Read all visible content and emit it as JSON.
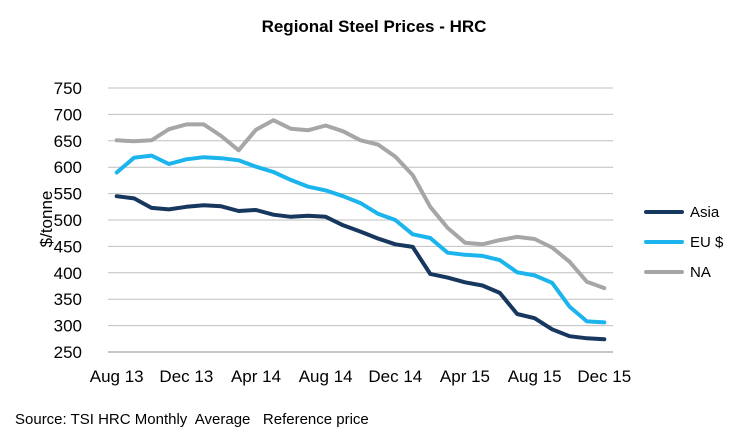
{
  "chart_data": {
    "type": "line",
    "title": "Regional Steel Prices - HRC",
    "xlabel": "",
    "ylabel": "$/tonne",
    "ylim": [
      250,
      750
    ],
    "yticks": [
      250,
      300,
      350,
      400,
      450,
      500,
      550,
      600,
      650,
      700,
      750
    ],
    "grid": true,
    "legend_position": "right",
    "x_tick_labels": [
      "Aug 13",
      "Dec 13",
      "Apr 14",
      "Aug 14",
      "Dec 14",
      "Apr 15",
      "Aug 15",
      "Dec 15"
    ],
    "x": [
      "Aug 13",
      "Sep 13",
      "Oct 13",
      "Nov 13",
      "Dec 13",
      "Jan 14",
      "Feb 14",
      "Mar 14",
      "Apr 14",
      "May 14",
      "Jun 14",
      "Jul 14",
      "Aug 14",
      "Sep 14",
      "Oct 14",
      "Nov 14",
      "Dec 14",
      "Jan 15",
      "Feb 15",
      "Mar 15",
      "Apr 15",
      "May 15",
      "Jun 15",
      "Jul 15",
      "Aug 15",
      "Sep 15",
      "Oct 15",
      "Nov 15",
      "Dec 15"
    ],
    "series": [
      {
        "name": "Asia",
        "color": "#17375e",
        "values": [
          545,
          541,
          523,
          520,
          525,
          528,
          526,
          517,
          519,
          510,
          506,
          508,
          506,
          490,
          478,
          465,
          454,
          449,
          398,
          391,
          382,
          376,
          362,
          322,
          314,
          293,
          280,
          276,
          274
        ]
      },
      {
        "name": "EU $",
        "color": "#1cb4ec",
        "values": [
          590,
          618,
          622,
          606,
          615,
          619,
          617,
          613,
          601,
          591,
          576,
          563,
          556,
          545,
          532,
          512,
          500,
          473,
          466,
          438,
          434,
          432,
          424,
          401,
          395,
          381,
          336,
          308,
          306
        ]
      },
      {
        "name": "NA",
        "color": "#a6a6a6",
        "values": [
          651,
          649,
          651,
          672,
          681,
          681,
          659,
          632,
          671,
          689,
          673,
          670,
          679,
          668,
          651,
          643,
          620,
          585,
          525,
          485,
          457,
          454,
          462,
          468,
          464,
          448,
          421,
          383,
          371
        ]
      }
    ],
    "source_note": "Source: TSI HRC Monthly  Average   Reference price"
  }
}
